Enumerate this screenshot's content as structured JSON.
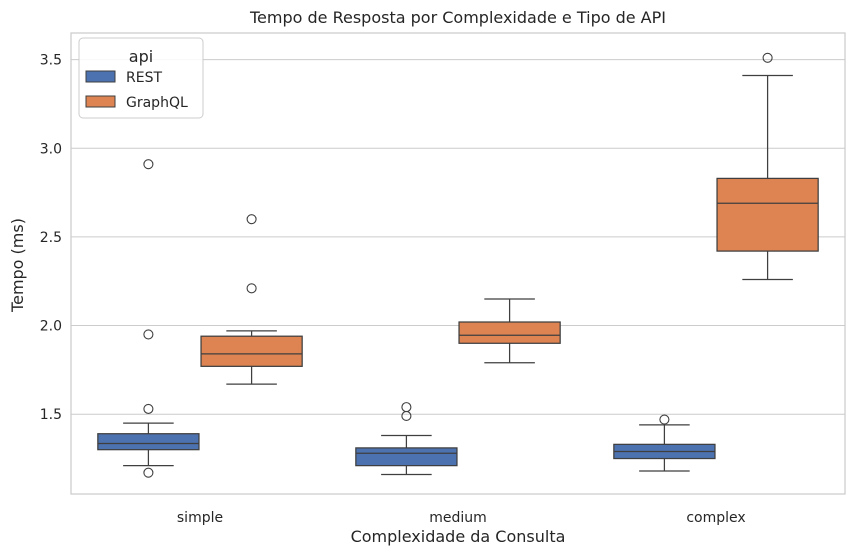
{
  "chart_data": {
    "type": "box",
    "title": "Tempo de Resposta por Complexidade e Tipo de API",
    "xlabel": "Complexidade da Consulta",
    "ylabel": "Tempo (ms)",
    "categories": [
      "simple",
      "medium",
      "complex"
    ],
    "ylim": [
      1.05,
      3.65
    ],
    "yticks": [
      1.5,
      2.0,
      2.5,
      3.0,
      3.5
    ],
    "ytick_labels": [
      "1.5",
      "2.0",
      "2.5",
      "3.0",
      "3.5"
    ],
    "grid": true,
    "legend": {
      "title": "api",
      "placement": "top-left"
    },
    "series": [
      {
        "name": "REST",
        "color": "#4c72b0",
        "boxes": [
          {
            "category": "simple",
            "whisker_low": 1.21,
            "q1": 1.3,
            "median": 1.335,
            "q3": 1.39,
            "whisker_high": 1.45,
            "outliers": [
              1.17,
              1.53,
              1.95,
              2.91
            ]
          },
          {
            "category": "medium",
            "whisker_low": 1.16,
            "q1": 1.21,
            "median": 1.28,
            "q3": 1.31,
            "whisker_high": 1.38,
            "outliers": [
              1.49,
              1.54
            ]
          },
          {
            "category": "complex",
            "whisker_low": 1.18,
            "q1": 1.25,
            "median": 1.29,
            "q3": 1.33,
            "whisker_high": 1.44,
            "outliers": [
              1.47
            ]
          }
        ]
      },
      {
        "name": "GraphQL",
        "color": "#dd8452",
        "boxes": [
          {
            "category": "simple",
            "whisker_low": 1.67,
            "q1": 1.77,
            "median": 1.84,
            "q3": 1.94,
            "whisker_high": 1.97,
            "outliers": [
              2.21,
              2.6
            ]
          },
          {
            "category": "medium",
            "whisker_low": 1.79,
            "q1": 1.9,
            "median": 1.945,
            "q3": 2.02,
            "whisker_high": 2.15,
            "outliers": []
          },
          {
            "category": "complex",
            "whisker_low": 2.26,
            "q1": 2.42,
            "median": 2.69,
            "q3": 2.83,
            "whisker_high": 3.41,
            "outliers": [
              3.51
            ]
          }
        ]
      }
    ]
  }
}
